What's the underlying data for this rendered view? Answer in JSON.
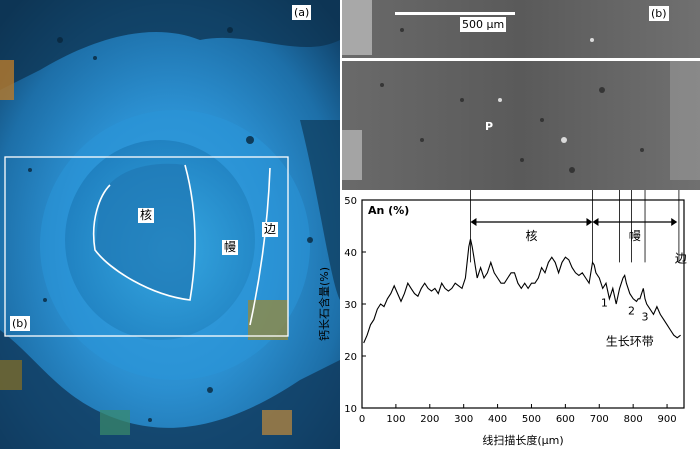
{
  "panel_a": {
    "tag": "(a)",
    "inset_tag": "(b)",
    "zone_core": "核",
    "zone_mantle": "幔",
    "zone_rim": "边"
  },
  "panel_b": {
    "tag": "(b)",
    "scale_label": "500 μm",
    "point_label": "P"
  },
  "chart_data": {
    "type": "line",
    "title": "An (%)",
    "xlabel": "线扫描长度(μm)",
    "ylabel": "钙长石含量(%)",
    "xlim": [
      0,
      950
    ],
    "ylim": [
      10,
      50
    ],
    "x_ticks": [
      0,
      100,
      200,
      300,
      400,
      500,
      600,
      700,
      800,
      900
    ],
    "y_ticks": [
      10,
      20,
      30,
      40,
      50
    ],
    "grid": false,
    "zones": [
      {
        "label": "核",
        "from": 320,
        "to": 680
      },
      {
        "label": "幔",
        "from": 680,
        "to": 930
      }
    ],
    "rim_label": "边",
    "band_labels": [
      "1",
      "2",
      "3"
    ],
    "annotation": "生长环带",
    "x": [
      5,
      15,
      25,
      35,
      45,
      55,
      65,
      75,
      85,
      95,
      105,
      115,
      125,
      135,
      145,
      155,
      165,
      175,
      185,
      195,
      205,
      215,
      225,
      235,
      245,
      255,
      265,
      275,
      285,
      295,
      305,
      310,
      315,
      320,
      325,
      330,
      335,
      340,
      345,
      350,
      355,
      360,
      370,
      380,
      390,
      400,
      410,
      420,
      430,
      440,
      450,
      460,
      470,
      480,
      490,
      500,
      510,
      520,
      530,
      540,
      550,
      560,
      570,
      580,
      590,
      600,
      610,
      620,
      630,
      640,
      650,
      660,
      670,
      675,
      680,
      685,
      690,
      700,
      710,
      720,
      730,
      740,
      750,
      760,
      765,
      770,
      775,
      780,
      790,
      800,
      810,
      815,
      820,
      825,
      830,
      835,
      840,
      850,
      860,
      870,
      880,
      890,
      900,
      910,
      920,
      930,
      940
    ],
    "values": [
      22.5,
      24,
      26,
      27,
      29,
      30,
      29.5,
      31,
      32,
      33.5,
      32,
      30.5,
      32,
      34,
      33,
      32,
      31.5,
      33,
      34,
      33,
      32.5,
      33,
      32,
      34,
      33,
      32.5,
      33,
      34,
      33.5,
      33,
      35,
      38,
      41,
      42.5,
      41,
      39,
      37,
      35,
      36,
      37,
      36,
      35,
      36,
      38,
      36,
      35,
      34,
      34,
      35,
      36,
      36,
      34,
      33,
      34,
      33,
      34,
      34,
      35,
      37,
      36,
      38,
      39,
      38,
      36,
      38,
      39,
      38.5,
      37,
      36,
      35.5,
      36,
      35,
      34,
      36,
      38,
      37.5,
      36,
      35,
      33,
      34,
      31,
      33,
      30,
      33,
      34,
      35,
      35.5,
      34,
      32,
      31,
      30.5,
      31,
      31,
      32,
      33,
      31,
      30,
      29,
      28,
      29.5,
      28,
      27,
      26,
      25,
      24,
      23.5,
      24
    ]
  }
}
